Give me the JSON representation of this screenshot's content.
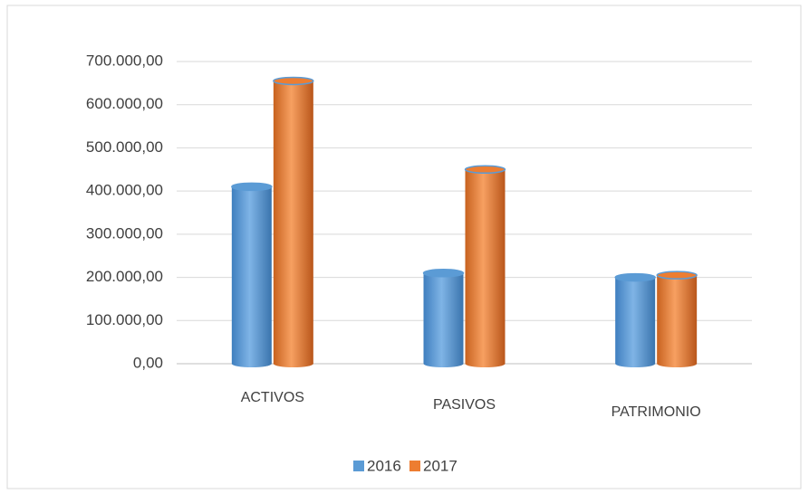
{
  "chart_data": {
    "type": "bar",
    "categories": [
      "ACTIVOS",
      "PASIVOS",
      "PATRIMONIO"
    ],
    "series": [
      {
        "name": "2016",
        "color": "#5b9bd5",
        "values": [
          410000,
          210000,
          200000
        ]
      },
      {
        "name": "2017",
        "color": "#ed7d31",
        "values": [
          655000,
          450000,
          205000
        ]
      }
    ],
    "ylim": [
      0,
      700000
    ],
    "yticks": [
      {
        "value": 0,
        "label": "0,00"
      },
      {
        "value": 100000,
        "label": "100.000,00"
      },
      {
        "value": 200000,
        "label": "200.000,00"
      },
      {
        "value": 300000,
        "label": "300.000,00"
      },
      {
        "value": 400000,
        "label": "400.000,00"
      },
      {
        "value": 500000,
        "label": "500.000,00"
      },
      {
        "value": 600000,
        "label": "600.000,00"
      },
      {
        "value": 700000,
        "label": "700.000,00"
      }
    ],
    "grid": true,
    "legend": "bottom"
  }
}
